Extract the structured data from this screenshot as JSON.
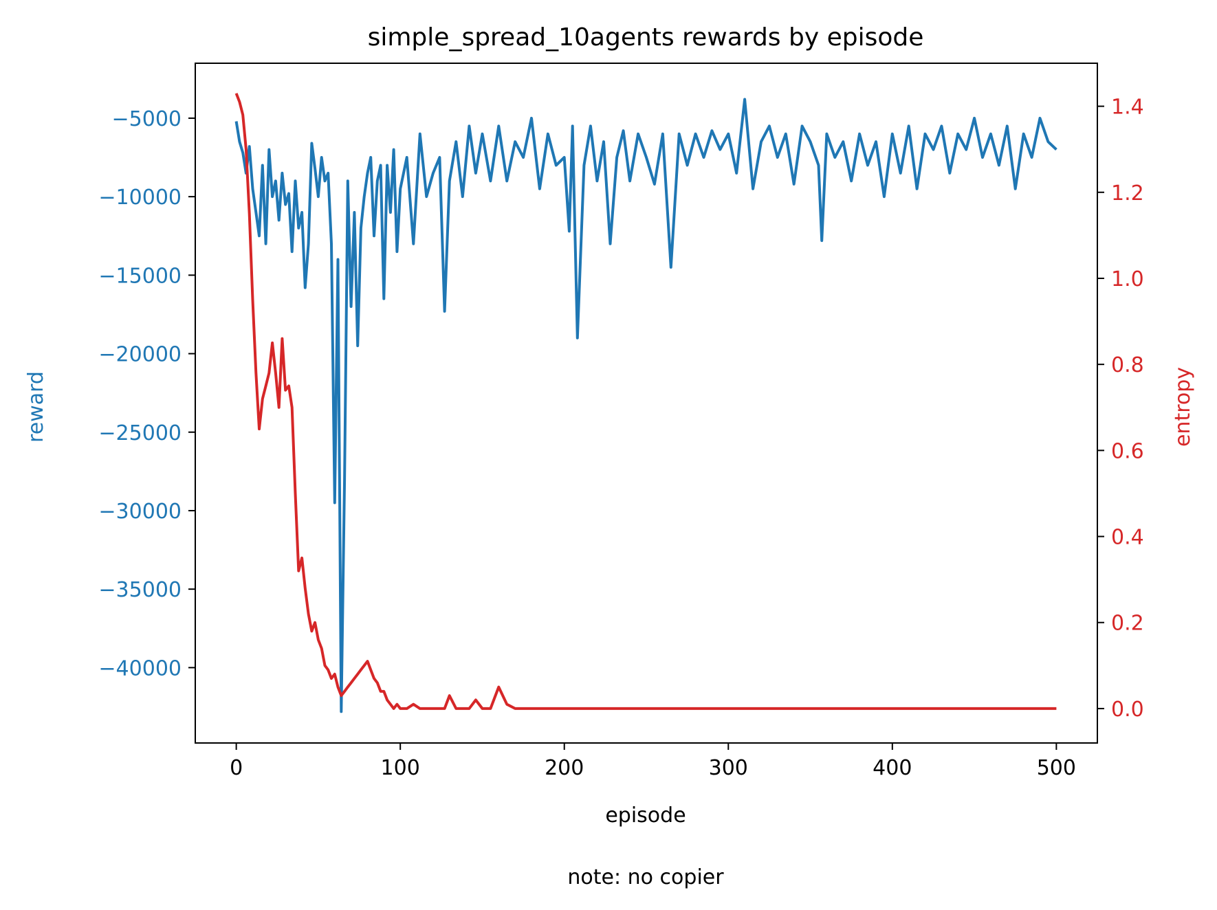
{
  "chart_data": {
    "type": "line",
    "title": "simple_spread_10agents rewards by episode",
    "xlabel": "episode",
    "ylabel_left": "reward",
    "ylabel_right": "entropy",
    "note": "note: no copier",
    "xlim": [
      -25,
      525
    ],
    "ylim_left": [
      -44800,
      -1500
    ],
    "ylim_right": [
      -0.08,
      1.5
    ],
    "x_ticks": [
      0,
      100,
      200,
      300,
      400,
      500
    ],
    "x_tick_labels": [
      "0",
      "100",
      "200",
      "300",
      "400",
      "500"
    ],
    "y_left_ticks": [
      -5000,
      -10000,
      -15000,
      -20000,
      -25000,
      -30000,
      -35000,
      -40000
    ],
    "y_left_tick_labels": [
      "−5000",
      "−10000",
      "−15000",
      "−20000",
      "−25000",
      "−30000",
      "−35000",
      "−40000"
    ],
    "y_right_ticks": [
      1.4,
      1.2,
      1.0,
      0.8,
      0.6,
      0.4,
      0.2,
      0.0
    ],
    "y_right_tick_labels": [
      "1.4",
      "1.2",
      "1.0",
      "0.8",
      "0.6",
      "0.4",
      "0.2",
      "0.0"
    ],
    "grid": false,
    "colors": {
      "reward": "#1f77b4",
      "entropy": "#d62728",
      "axes": "#000000"
    },
    "series": [
      {
        "name": "reward",
        "axis": "left",
        "x": [
          0,
          2,
          4,
          6,
          8,
          10,
          12,
          14,
          16,
          18,
          20,
          22,
          24,
          26,
          28,
          30,
          32,
          34,
          36,
          38,
          40,
          42,
          44,
          46,
          48,
          50,
          52,
          54,
          56,
          58,
          60,
          62,
          64,
          66,
          68,
          70,
          72,
          74,
          76,
          78,
          80,
          82,
          84,
          86,
          88,
          90,
          92,
          94,
          96,
          98,
          100,
          104,
          108,
          112,
          116,
          120,
          124,
          127,
          130,
          134,
          138,
          142,
          146,
          150,
          155,
          160,
          165,
          170,
          175,
          180,
          185,
          190,
          195,
          200,
          203,
          205,
          208,
          212,
          216,
          220,
          224,
          228,
          232,
          236,
          240,
          245,
          250,
          255,
          260,
          265,
          270,
          275,
          280,
          285,
          290,
          295,
          300,
          305,
          310,
          315,
          320,
          325,
          330,
          335,
          340,
          345,
          350,
          355,
          357,
          360,
          365,
          370,
          375,
          380,
          385,
          390,
          395,
          400,
          405,
          410,
          415,
          420,
          425,
          430,
          435,
          440,
          445,
          450,
          455,
          460,
          465,
          470,
          475,
          480,
          485,
          490,
          495,
          500
        ],
        "values": [
          -5200,
          -6500,
          -7200,
          -8500,
          -6800,
          -9500,
          -11000,
          -12500,
          -8000,
          -13000,
          -7000,
          -10000,
          -9000,
          -11500,
          -8500,
          -10500,
          -9800,
          -13500,
          -9000,
          -12000,
          -11000,
          -15800,
          -13000,
          -6600,
          -8200,
          -10000,
          -7500,
          -9000,
          -8500,
          -13000,
          -29500,
          -14000,
          -42800,
          -28000,
          -9000,
          -17000,
          -11000,
          -19500,
          -12000,
          -10000,
          -8500,
          -7500,
          -12500,
          -9000,
          -8000,
          -16500,
          -8000,
          -11000,
          -7000,
          -13500,
          -9500,
          -7500,
          -13000,
          -6000,
          -10000,
          -8500,
          -7500,
          -17300,
          -9000,
          -6500,
          -10000,
          -5500,
          -8500,
          -6000,
          -9000,
          -5500,
          -9000,
          -6500,
          -7500,
          -5000,
          -9500,
          -6000,
          -8000,
          -7500,
          -12200,
          -5500,
          -19000,
          -8000,
          -5500,
          -9000,
          -6500,
          -13000,
          -7500,
          -5800,
          -9000,
          -6000,
          -7500,
          -9200,
          -6000,
          -14500,
          -6000,
          -8000,
          -6000,
          -7500,
          -5800,
          -7000,
          -6000,
          -8500,
          -3800,
          -9500,
          -6500,
          -5500,
          -7500,
          -6000,
          -9200,
          -5500,
          -6500,
          -8000,
          -12800,
          -6000,
          -7500,
          -6500,
          -9000,
          -6000,
          -8000,
          -6500,
          -10000,
          -6000,
          -8500,
          -5500,
          -9500,
          -6000,
          -7000,
          -5500,
          -8500,
          -6000,
          -7000,
          -5000,
          -7500,
          -6000,
          -8000,
          -5500,
          -9500,
          -6000,
          -7500,
          -5000,
          -6500,
          -7000
        ],
        "color": "#1f77b4"
      },
      {
        "name": "entropy",
        "axis": "right",
        "x": [
          0,
          2,
          4,
          6,
          8,
          10,
          12,
          14,
          16,
          18,
          20,
          22,
          24,
          26,
          28,
          30,
          32,
          34,
          36,
          38,
          40,
          42,
          44,
          46,
          48,
          50,
          52,
          54,
          56,
          58,
          60,
          62,
          64,
          66,
          68,
          70,
          72,
          74,
          76,
          78,
          80,
          82,
          84,
          86,
          88,
          90,
          92,
          94,
          96,
          98,
          100,
          104,
          108,
          112,
          116,
          120,
          124,
          127,
          130,
          134,
          138,
          142,
          146,
          150,
          155,
          160,
          165,
          170,
          175,
          180,
          185,
          190,
          195,
          200,
          203,
          205,
          208,
          212,
          216,
          220,
          224,
          228,
          232,
          236,
          240,
          245,
          250,
          255,
          260,
          265,
          270,
          275,
          280,
          285,
          290,
          295,
          300,
          305,
          310,
          315,
          320,
          325,
          330,
          335,
          340,
          345,
          350,
          355,
          357,
          360,
          365,
          370,
          375,
          380,
          385,
          390,
          395,
          400,
          405,
          410,
          415,
          420,
          425,
          430,
          435,
          440,
          445,
          450,
          455,
          460,
          465,
          470,
          475,
          480,
          485,
          490,
          495,
          500
        ],
        "values": [
          1.43,
          1.41,
          1.38,
          1.3,
          1.15,
          0.95,
          0.78,
          0.65,
          0.72,
          0.75,
          0.78,
          0.85,
          0.78,
          0.7,
          0.86,
          0.74,
          0.75,
          0.7,
          0.5,
          0.32,
          0.35,
          0.28,
          0.22,
          0.18,
          0.2,
          0.16,
          0.14,
          0.1,
          0.09,
          0.07,
          0.08,
          0.05,
          0.03,
          0.04,
          0.05,
          0.06,
          0.07,
          0.08,
          0.09,
          0.1,
          0.11,
          0.09,
          0.07,
          0.06,
          0.04,
          0.04,
          0.02,
          0.01,
          0.0,
          0.01,
          0.0,
          0.0,
          0.01,
          0.0,
          0.0,
          0.0,
          0.0,
          0.0,
          0.03,
          0.0,
          0.0,
          0.0,
          0.02,
          0.0,
          0.0,
          0.05,
          0.01,
          0.0,
          0.0,
          0.0,
          0.0,
          0.0,
          0.0,
          0.0,
          0.0,
          0.0,
          0.0,
          0.0,
          0.0,
          0.0,
          0.0,
          0.0,
          0.0,
          0.0,
          0.0,
          0.0,
          0.0,
          0.0,
          0.0,
          0.0,
          0.0,
          0.0,
          0.0,
          0.0,
          0.0,
          0.0,
          0.0,
          0.0,
          0.0,
          0.0,
          0.0,
          0.0,
          0.0,
          0.0,
          0.0,
          0.0,
          0.0,
          0.0,
          0.0,
          0.0,
          0.0,
          0.0,
          0.0,
          0.0,
          0.0,
          0.0,
          0.0,
          0.0,
          0.0,
          0.0,
          0.0,
          0.0,
          0.0,
          0.0,
          0.0,
          0.0,
          0.0,
          0.0,
          0.0,
          0.0,
          0.0,
          0.0,
          0.0,
          0.0,
          0.0,
          0.0,
          0.0,
          0.0
        ],
        "color": "#d62728"
      }
    ]
  }
}
